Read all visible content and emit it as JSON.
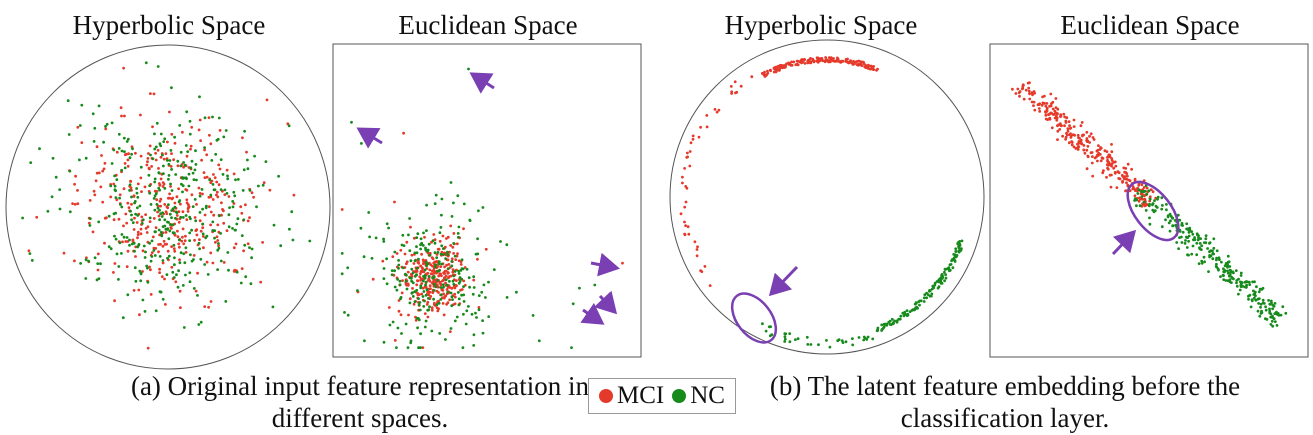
{
  "colors": {
    "mci": "#e53a2b",
    "nc": "#178a1c",
    "arrow": "#7a3fb3",
    "frame": "#555555"
  },
  "panels": [
    {
      "title": "Hyperbolic Space"
    },
    {
      "title": "Euclidean Space"
    },
    {
      "title": "Hyperbolic Space"
    },
    {
      "title": "Euclidean Space"
    }
  ],
  "captions": {
    "a": {
      "line1": "(a) Original input feature representation in",
      "line2": "different spaces."
    },
    "b": {
      "line1": "(b) The latent feature embedding before the",
      "line2": "classification layer."
    }
  },
  "legend": {
    "mci": "MCI",
    "nc": "NC"
  },
  "chart_data": [
    {
      "type": "scatter",
      "title": "Hyperbolic Space",
      "space": "poincare-disk",
      "series": [
        {
          "name": "MCI",
          "distribution": "diffuse cloud centered in disk",
          "center": [
            0,
            0
          ],
          "spread": 0.28,
          "count": 380
        },
        {
          "name": "NC",
          "distribution": "diffuse cloud centered in disk",
          "center": [
            0,
            0
          ],
          "spread": 0.32,
          "count": 380
        }
      ]
    },
    {
      "type": "scatter",
      "title": "Euclidean Space",
      "series": [
        {
          "name": "MCI",
          "distribution": "dense cluster lower-left",
          "center": [
            0.32,
            0.74
          ],
          "spread": 0.05,
          "count": 330
        },
        {
          "name": "NC",
          "distribution": "cluster lower-left with outliers",
          "center": [
            0.32,
            0.74
          ],
          "spread": 0.09,
          "count": 260
        }
      ],
      "annotations": [
        {
          "type": "arrow",
          "target": [
            0.44,
            0.08
          ]
        },
        {
          "type": "arrow",
          "target": [
            0.06,
            0.25
          ]
        },
        {
          "type": "arrow",
          "target": [
            0.91,
            0.7
          ]
        },
        {
          "type": "arrow",
          "target": [
            0.84,
            0.78
          ]
        },
        {
          "type": "arrow",
          "target": [
            0.8,
            0.83
          ]
        }
      ]
    },
    {
      "type": "scatter",
      "title": "Hyperbolic Space",
      "space": "poincare-disk",
      "series": [
        {
          "name": "MCI",
          "distribution": "dense arc near upper boundary plus sparse points on left boundary",
          "count": 220
        },
        {
          "name": "NC",
          "distribution": "arc near lower-right boundary plus sparse bottom points",
          "count": 180
        }
      ],
      "annotations": [
        {
          "type": "ellipse",
          "label": ""
        },
        {
          "type": "arrow"
        }
      ]
    },
    {
      "type": "scatter",
      "title": "Euclidean Space",
      "series": [
        {
          "name": "MCI",
          "distribution": "diagonal band upper-left",
          "count": 300
        },
        {
          "name": "NC",
          "distribution": "diagonal band lower-right",
          "count": 280
        }
      ],
      "annotations": [
        {
          "type": "ellipse",
          "label": ""
        },
        {
          "type": "arrow"
        }
      ]
    }
  ]
}
